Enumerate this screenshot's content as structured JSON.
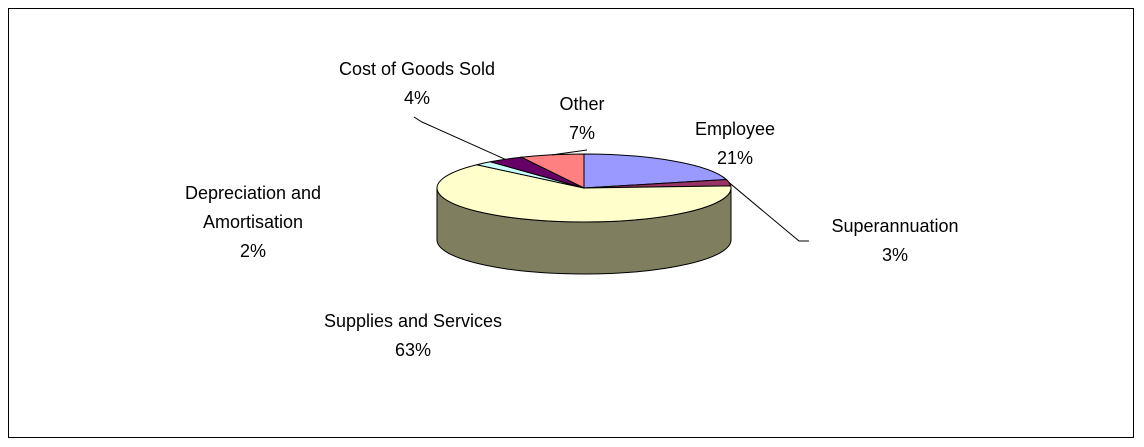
{
  "chart_data": {
    "type": "pie",
    "style": "3d-pie",
    "title": "",
    "start_angle_deg": 90,
    "direction": "clockwise",
    "slices": [
      {
        "label": "Employee",
        "percent_label": "21%",
        "value": 21,
        "color": "#9999FF"
      },
      {
        "label": "Superannuation",
        "percent_label": "3%",
        "value": 3,
        "color": "#993366"
      },
      {
        "label": "Supplies and Services",
        "percent_label": "63%",
        "value": 63,
        "color": "#FFFFCC"
      },
      {
        "label": "Depreciation and Amortisation",
        "percent_label": "2%",
        "value": 2,
        "color": "#CCFFFF"
      },
      {
        "label": "Cost of Goods Sold",
        "percent_label": "4%",
        "value": 4,
        "color": "#660066"
      },
      {
        "label": "Other",
        "percent_label": "7%",
        "value": 7,
        "color": "#FF8080"
      }
    ],
    "side_color": "#7F7F5F",
    "outline_color": "#000000",
    "legend": "none"
  }
}
